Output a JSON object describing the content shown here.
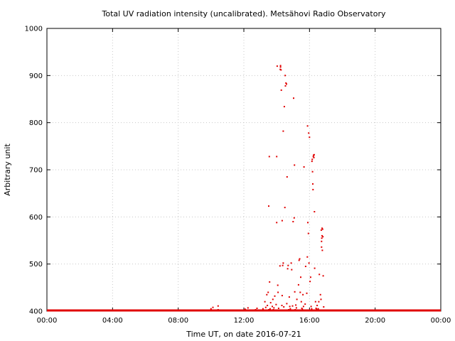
{
  "chart_data": {
    "type": "scatter",
    "title": "Total UV radiation intensity (uncalibrated). Metsähovi Radio Observatory",
    "xlabel": "Time UT, on date 2016-07-21",
    "ylabel": "Arbitrary unit",
    "xlim": [
      "00:00",
      "24:00"
    ],
    "ylim": [
      400,
      1000
    ],
    "x_ticks": [
      "00:00",
      "04:00",
      "08:00",
      "12:00",
      "16:00",
      "20:00",
      "00:00"
    ],
    "y_ticks": [
      "400",
      "500",
      "600",
      "700",
      "800",
      "900",
      "1000"
    ],
    "grid": true,
    "color": "#e00000",
    "baseline": {
      "value": 400,
      "from": "00:00",
      "to": "24:00"
    },
    "points": [
      {
        "x": "09:33",
        "y": 401
      },
      {
        "x": "10:00",
        "y": 405
      },
      {
        "x": "10:07",
        "y": 408
      },
      {
        "x": "10:26",
        "y": 403
      },
      {
        "x": "10:26",
        "y": 411
      },
      {
        "x": "11:30",
        "y": 402
      },
      {
        "x": "12:05",
        "y": 404
      },
      {
        "x": "12:15",
        "y": 407
      },
      {
        "x": "12:43",
        "y": 403
      },
      {
        "x": "12:48",
        "y": 406
      },
      {
        "x": "13:00",
        "y": 402
      },
      {
        "x": "13:10",
        "y": 405
      },
      {
        "x": "13:17",
        "y": 420
      },
      {
        "x": "13:20",
        "y": 408
      },
      {
        "x": "13:24",
        "y": 435
      },
      {
        "x": "13:24",
        "y": 402
      },
      {
        "x": "13:26",
        "y": 412
      },
      {
        "x": "13:29",
        "y": 440
      },
      {
        "x": "13:31",
        "y": 403
      },
      {
        "x": "13:31",
        "y": 623
      },
      {
        "x": "13:33",
        "y": 728
      },
      {
        "x": "13:34",
        "y": 462
      },
      {
        "x": "13:36",
        "y": 405
      },
      {
        "x": "13:38",
        "y": 418
      },
      {
        "x": "13:41",
        "y": 402
      },
      {
        "x": "13:44",
        "y": 410
      },
      {
        "x": "13:46",
        "y": 425
      },
      {
        "x": "13:48",
        "y": 403
      },
      {
        "x": "13:50",
        "y": 407
      },
      {
        "x": "13:53",
        "y": 432
      },
      {
        "x": "13:55",
        "y": 402
      },
      {
        "x": "13:58",
        "y": 414
      },
      {
        "x": "14:00",
        "y": 588
      },
      {
        "x": "14:00",
        "y": 728
      },
      {
        "x": "14:02",
        "y": 920
      },
      {
        "x": "14:04",
        "y": 455
      },
      {
        "x": "14:05",
        "y": 440
      },
      {
        "x": "14:07",
        "y": 406
      },
      {
        "x": "14:10",
        "y": 402
      },
      {
        "x": "14:12",
        "y": 496
      },
      {
        "x": "14:13",
        "y": 913
      },
      {
        "x": "14:14",
        "y": 921
      },
      {
        "x": "14:14",
        "y": 918
      },
      {
        "x": "14:16",
        "y": 912
      },
      {
        "x": "14:17",
        "y": 869
      },
      {
        "x": "14:19",
        "y": 412
      },
      {
        "x": "14:20",
        "y": 433
      },
      {
        "x": "14:20",
        "y": 592
      },
      {
        "x": "14:22",
        "y": 497
      },
      {
        "x": "14:24",
        "y": 502
      },
      {
        "x": "14:24",
        "y": 782
      },
      {
        "x": "14:26",
        "y": 409
      },
      {
        "x": "14:28",
        "y": 834
      },
      {
        "x": "14:30",
        "y": 620
      },
      {
        "x": "14:31",
        "y": 900
      },
      {
        "x": "14:32",
        "y": 878
      },
      {
        "x": "14:34",
        "y": 884
      },
      {
        "x": "14:36",
        "y": 882
      },
      {
        "x": "14:37",
        "y": 416
      },
      {
        "x": "14:38",
        "y": 685
      },
      {
        "x": "14:40",
        "y": 490
      },
      {
        "x": "14:42",
        "y": 497
      },
      {
        "x": "14:44",
        "y": 403
      },
      {
        "x": "14:46",
        "y": 430
      },
      {
        "x": "14:48",
        "y": 410
      },
      {
        "x": "14:50",
        "y": 405
      },
      {
        "x": "14:53",
        "y": 502
      },
      {
        "x": "14:55",
        "y": 488
      },
      {
        "x": "14:58",
        "y": 411
      },
      {
        "x": "15:00",
        "y": 590
      },
      {
        "x": "15:02",
        "y": 852
      },
      {
        "x": "15:04",
        "y": 598
      },
      {
        "x": "15:05",
        "y": 710
      },
      {
        "x": "15:06",
        "y": 441
      },
      {
        "x": "15:08",
        "y": 403
      },
      {
        "x": "15:10",
        "y": 413
      },
      {
        "x": "15:12",
        "y": 407
      },
      {
        "x": "15:14",
        "y": 425
      },
      {
        "x": "15:17",
        "y": 402
      },
      {
        "x": "15:20",
        "y": 456
      },
      {
        "x": "15:22",
        "y": 508
      },
      {
        "x": "15:24",
        "y": 511
      },
      {
        "x": "15:26",
        "y": 440
      },
      {
        "x": "15:28",
        "y": 472
      },
      {
        "x": "15:30",
        "y": 420
      },
      {
        "x": "15:32",
        "y": 406
      },
      {
        "x": "15:34",
        "y": 404
      },
      {
        "x": "15:36",
        "y": 435
      },
      {
        "x": "15:38",
        "y": 410
      },
      {
        "x": "15:40",
        "y": 706
      },
      {
        "x": "15:42",
        "y": 402
      },
      {
        "x": "15:44",
        "y": 415
      },
      {
        "x": "15:46",
        "y": 495
      },
      {
        "x": "15:48",
        "y": 402
      },
      {
        "x": "15:50",
        "y": 438
      },
      {
        "x": "15:52",
        "y": 515
      },
      {
        "x": "15:53",
        "y": 793
      },
      {
        "x": "15:54",
        "y": 588
      },
      {
        "x": "15:56",
        "y": 565
      },
      {
        "x": "15:57",
        "y": 778
      },
      {
        "x": "15:58",
        "y": 502
      },
      {
        "x": "16:00",
        "y": 769
      },
      {
        "x": "16:02",
        "y": 463
      },
      {
        "x": "16:04",
        "y": 472
      },
      {
        "x": "16:06",
        "y": 410
      },
      {
        "x": "16:08",
        "y": 405
      },
      {
        "x": "16:09",
        "y": 718
      },
      {
        "x": "16:10",
        "y": 722
      },
      {
        "x": "16:11",
        "y": 696
      },
      {
        "x": "16:12",
        "y": 670
      },
      {
        "x": "16:13",
        "y": 658
      },
      {
        "x": "16:14",
        "y": 728
      },
      {
        "x": "16:15",
        "y": 731
      },
      {
        "x": "16:16",
        "y": 726
      },
      {
        "x": "16:17",
        "y": 732
      },
      {
        "x": "16:18",
        "y": 611
      },
      {
        "x": "16:19",
        "y": 491
      },
      {
        "x": "16:20",
        "y": 402
      },
      {
        "x": "16:22",
        "y": 420
      },
      {
        "x": "16:24",
        "y": 406
      },
      {
        "x": "16:26",
        "y": 404
      },
      {
        "x": "16:28",
        "y": 412
      },
      {
        "x": "16:30",
        "y": 402
      },
      {
        "x": "16:32",
        "y": 405
      },
      {
        "x": "16:34",
        "y": 420
      },
      {
        "x": "16:36",
        "y": 478
      },
      {
        "x": "16:38",
        "y": 402
      },
      {
        "x": "16:40",
        "y": 435
      },
      {
        "x": "16:42",
        "y": 425
      },
      {
        "x": "16:43",
        "y": 572
      },
      {
        "x": "16:44",
        "y": 536
      },
      {
        "x": "16:44",
        "y": 548
      },
      {
        "x": "16:45",
        "y": 555
      },
      {
        "x": "16:46",
        "y": 560
      },
      {
        "x": "16:46",
        "y": 576
      },
      {
        "x": "16:47",
        "y": 529
      },
      {
        "x": "16:48",
        "y": 574
      },
      {
        "x": "16:49",
        "y": 558
      },
      {
        "x": "16:50",
        "y": 475
      },
      {
        "x": "16:52",
        "y": 409
      },
      {
        "x": "16:55",
        "y": 402
      }
    ]
  }
}
